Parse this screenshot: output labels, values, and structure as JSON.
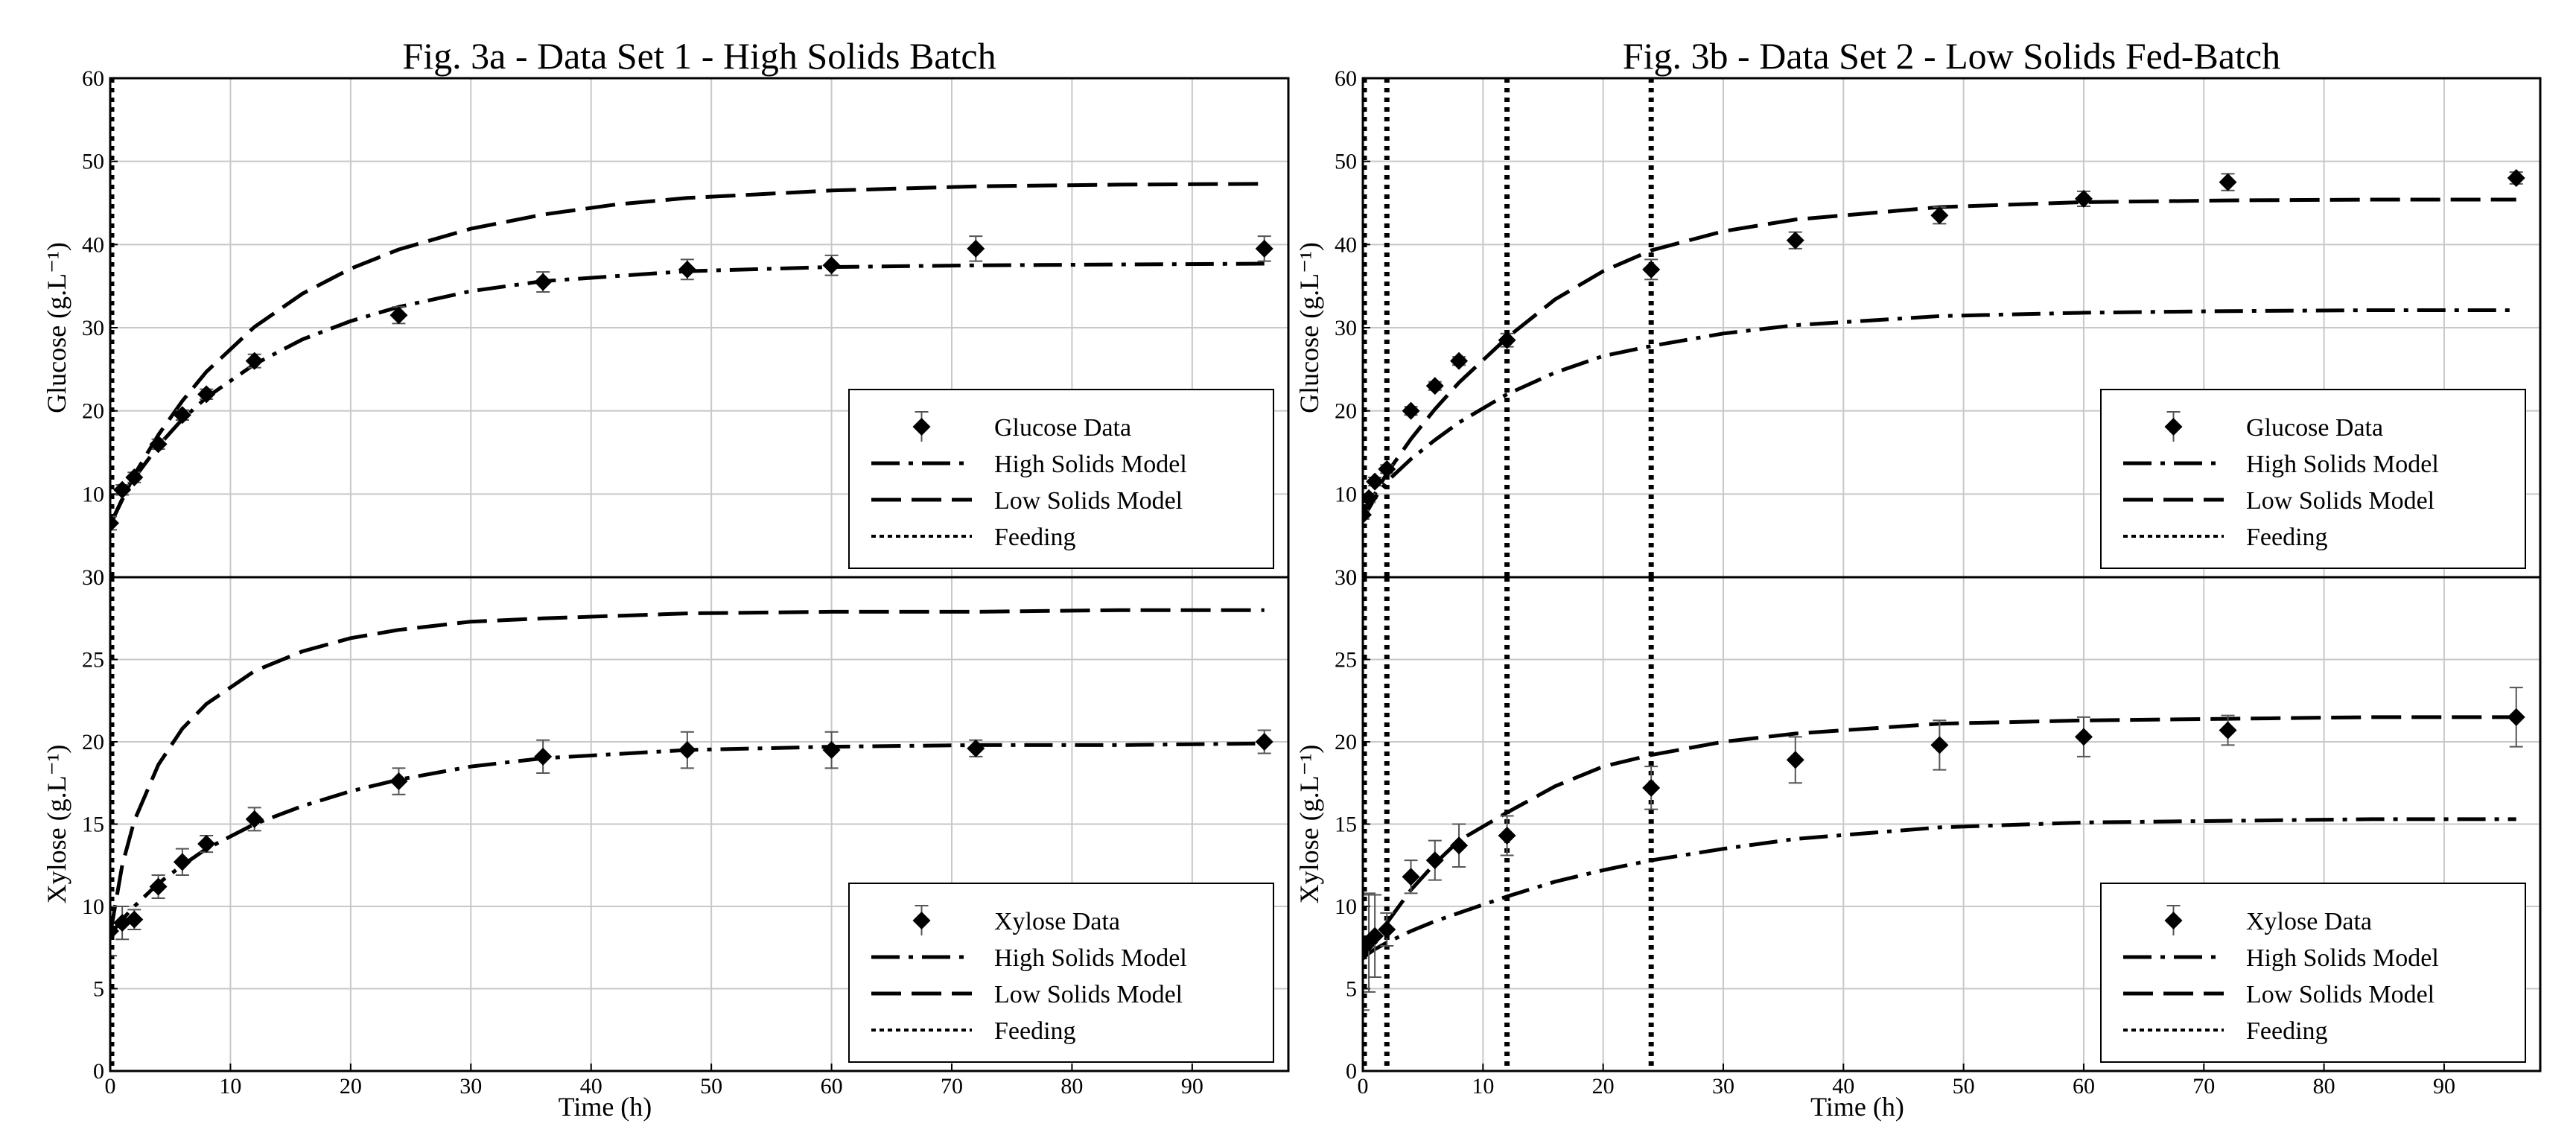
{
  "chart_data": [
    {
      "type": "line",
      "title": "Fig. 3a - Data Set 1 - High Solids Batch",
      "xlabel": "Time (h)",
      "xlim": [
        0,
        98
      ],
      "x_ticks": [
        "0",
        "10",
        "20",
        "30",
        "40",
        "50",
        "60",
        "70",
        "80",
        "90"
      ],
      "grid": true,
      "subplots": [
        {
          "ylabel": "Glucose (g.L⁻¹)",
          "ylim": [
            0,
            60
          ],
          "y_ticks": [
            "0",
            "10",
            "20",
            "30",
            "40",
            "50",
            "60"
          ],
          "legend": [
            "Glucose Data",
            "High Solids Model",
            "Low Solids Model",
            "Feeding"
          ],
          "legend_position": "bottom-right",
          "data_points": {
            "x": [
              0,
              1,
              2,
              4,
              6,
              8,
              12,
              24,
              36,
              48,
              60,
              72,
              96
            ],
            "y": [
              6.5,
              10.5,
              12,
              16,
              19.5,
              22,
              26,
              31.5,
              35.5,
              37,
              37.5,
              39.5,
              39.5
            ],
            "err": [
              0.8,
              0.6,
              0.6,
              0.6,
              0.6,
              0.6,
              0.8,
              1.0,
              1.2,
              1.2,
              1.2,
              1.5,
              1.5
            ]
          },
          "high_solids_model": {
            "x": [
              0,
              1,
              2,
              4,
              6,
              8,
              12,
              16,
              20,
              24,
              30,
              36,
              48,
              60,
              72,
              84,
              96
            ],
            "y": [
              6.3,
              9.4,
              11.9,
              15.8,
              19.0,
              21.6,
              25.6,
              28.6,
              30.8,
              32.5,
              34.4,
              35.6,
              36.8,
              37.3,
              37.5,
              37.6,
              37.7
            ]
          },
          "low_solids_model": {
            "x": [
              0,
              2,
              4,
              6,
              8,
              12,
              16,
              20,
              24,
              30,
              36,
              42,
              48,
              60,
              72,
              84,
              96
            ],
            "y": [
              6.3,
              12.3,
              17.1,
              21.2,
              24.7,
              30.1,
              34.1,
              37.1,
              39.4,
              41.9,
              43.6,
              44.8,
              45.6,
              46.5,
              47.0,
              47.2,
              47.3
            ]
          },
          "feeding": [
            0
          ]
        },
        {
          "ylabel": "Xylose (g.L⁻¹)",
          "ylim": [
            0,
            30
          ],
          "y_ticks": [
            "0",
            "5",
            "10",
            "15",
            "20",
            "25",
            "30"
          ],
          "legend": [
            "Xylose Data",
            "High Solids Model",
            "Low Solids Model",
            "Feeding"
          ],
          "legend_position": "bottom-right",
          "data_points": {
            "x": [
              0,
              1,
              2,
              4,
              6,
              8,
              12,
              24,
              36,
              48,
              60,
              72,
              96
            ],
            "y": [
              8.5,
              9,
              9.2,
              11.2,
              12.7,
              13.8,
              15.3,
              17.6,
              19.1,
              19.5,
              19.5,
              19.6,
              20
            ],
            "err": [
              1.5,
              1.0,
              0.6,
              0.7,
              0.8,
              0.5,
              0.7,
              0.8,
              1.0,
              1.1,
              1.1,
              0.5,
              0.7
            ]
          },
          "high_solids_model": {
            "x": [
              0,
              1,
              2,
              4,
              6,
              8,
              12,
              16,
              20,
              24,
              30,
              36,
              48,
              60,
              72,
              84,
              96
            ],
            "y": [
              8.3,
              9.2,
              10.0,
              11.4,
              12.5,
              13.5,
              15.0,
              16.1,
              17.0,
              17.7,
              18.5,
              19.0,
              19.5,
              19.7,
              19.8,
              19.8,
              19.9
            ]
          },
          "low_solids_model": {
            "x": [
              0,
              1,
              2,
              4,
              6,
              8,
              12,
              16,
              20,
              24,
              30,
              36,
              48,
              60,
              72,
              84,
              96
            ],
            "y": [
              8.3,
              12.5,
              15.2,
              18.6,
              20.8,
              22.3,
              24.3,
              25.5,
              26.3,
              26.8,
              27.3,
              27.5,
              27.8,
              27.9,
              27.9,
              28.0,
              28.0
            ]
          },
          "feeding": [
            0
          ]
        }
      ]
    },
    {
      "type": "line",
      "title": "Fig. 3b - Data Set 2 - Low Solids Fed-Batch",
      "xlabel": "Time (h)",
      "xlim": [
        0,
        98
      ],
      "x_ticks": [
        "0",
        "10",
        "20",
        "30",
        "40",
        "50",
        "60",
        "70",
        "80",
        "90"
      ],
      "grid": true,
      "subplots": [
        {
          "ylabel": "Glucose (g.L⁻¹)",
          "ylim": [
            0,
            60
          ],
          "y_ticks": [
            "0",
            "10",
            "20",
            "30",
            "40",
            "50",
            "60"
          ],
          "legend": [
            "Glucose Data",
            "High Solids Model",
            "Low Solids Model",
            "Feeding"
          ],
          "legend_position": "bottom-right",
          "data_points": {
            "x": [
              0,
              0.5,
              1,
              2,
              4,
              6,
              8,
              12,
              24,
              36,
              48,
              60,
              72,
              96
            ],
            "y": [
              7.5,
              9.5,
              11.5,
              13,
              20,
              23,
              26,
              28.5,
              37,
              40.5,
              43.5,
              45.5,
              47.5,
              48
            ],
            "err": [
              0.5,
              0.5,
              0.5,
              0.5,
              0.5,
              0.5,
              0.5,
              0.8,
              1.2,
              1.0,
              1.0,
              0.9,
              1.0,
              0.7
            ]
          },
          "high_solids_model": {
            "x": [
              0,
              1,
              2,
              4,
              6,
              8,
              12,
              16,
              20,
              24,
              30,
              36,
              48,
              60,
              72,
              84,
              96
            ],
            "y": [
              7.0,
              9.5,
              11.5,
              14.2,
              16.5,
              18.6,
              22.0,
              24.6,
              26.6,
              27.8,
              29.3,
              30.3,
              31.4,
              31.8,
              32.0,
              32.1,
              32.1
            ]
          },
          "low_solids_model": {
            "x": [
              0,
              1,
              2,
              4,
              6,
              8,
              12,
              16,
              20,
              24,
              30,
              36,
              48,
              60,
              72,
              84,
              96
            ],
            "y": [
              7.0,
              10.0,
              12.5,
              16.6,
              20.2,
              23.4,
              28.8,
              33.4,
              36.8,
              39.3,
              41.6,
              43.0,
              44.5,
              45.1,
              45.3,
              45.4,
              45.4
            ]
          },
          "feeding": [
            0,
            2,
            12,
            24
          ]
        },
        {
          "ylabel": "Xylose (g.L⁻¹)",
          "ylim": [
            0,
            30
          ],
          "y_ticks": [
            "0",
            "5",
            "10",
            "15",
            "20",
            "25",
            "30"
          ],
          "legend": [
            "Xylose Data",
            "High Solids Model",
            "Low Solids Model",
            "Feeding"
          ],
          "legend_position": "bottom-right",
          "data_points": {
            "x": [
              0,
              0.5,
              1,
              2,
              4,
              6,
              8,
              12,
              24,
              36,
              48,
              60,
              72,
              96
            ],
            "y": [
              7.2,
              7.8,
              8.2,
              8.6,
              11.8,
              12.8,
              13.7,
              14.3,
              17.2,
              18.9,
              19.8,
              20.3,
              20.7,
              21.5
            ],
            "err": [
              3.5,
              3.0,
              2.5,
              1.0,
              1.0,
              1.2,
              1.3,
              1.2,
              1.3,
              1.4,
              1.5,
              1.2,
              0.9,
              1.8
            ]
          },
          "high_solids_model": {
            "x": [
              0,
              1,
              2,
              4,
              6,
              8,
              12,
              16,
              20,
              24,
              30,
              36,
              48,
              60,
              72,
              84,
              96
            ],
            "y": [
              6.9,
              7.4,
              7.8,
              8.5,
              9.1,
              9.6,
              10.6,
              11.5,
              12.2,
              12.8,
              13.5,
              14.1,
              14.8,
              15.1,
              15.2,
              15.3,
              15.3
            ]
          },
          "low_solids_model": {
            "x": [
              0,
              1,
              2,
              4,
              6,
              8,
              12,
              16,
              20,
              24,
              30,
              36,
              48,
              60,
              72,
              84,
              96
            ],
            "y": [
              6.9,
              8.0,
              9.0,
              11.0,
              12.6,
              14.0,
              15.7,
              17.3,
              18.5,
              19.2,
              20.0,
              20.5,
              21.1,
              21.3,
              21.4,
              21.5,
              21.5
            ]
          },
          "feeding": [
            0,
            2,
            12,
            24
          ]
        }
      ]
    }
  ]
}
